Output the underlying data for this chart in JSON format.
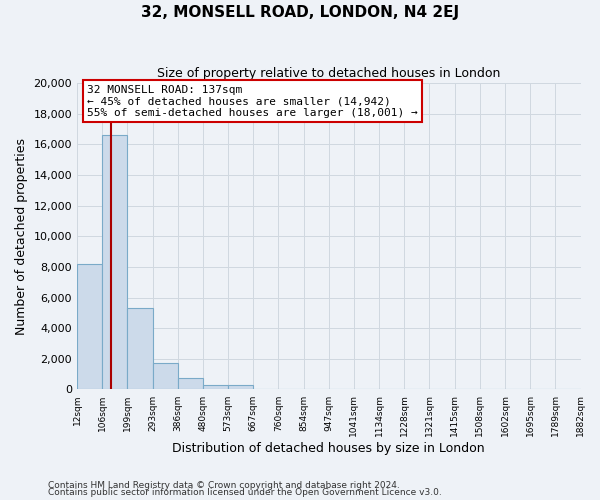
{
  "title": "32, MONSELL ROAD, LONDON, N4 2EJ",
  "subtitle": "Size of property relative to detached houses in London",
  "xlabel": "Distribution of detached houses by size in London",
  "ylabel": "Number of detached properties",
  "bar_values": [
    8200,
    16600,
    5300,
    1750,
    750,
    280,
    280,
    0,
    0,
    0,
    0,
    0,
    0,
    0,
    0,
    0,
    0,
    0,
    0,
    0
  ],
  "bar_labels": [
    "12sqm",
    "106sqm",
    "199sqm",
    "293sqm",
    "386sqm",
    "480sqm",
    "573sqm",
    "667sqm",
    "760sqm",
    "854sqm",
    "947sqm",
    "1041sqm",
    "1134sqm",
    "1228sqm",
    "1321sqm",
    "1415sqm",
    "1508sqm",
    "1602sqm",
    "1695sqm",
    "1789sqm",
    "1882sqm"
  ],
  "bar_color": "#ccdaea",
  "bar_edge_color": "#7aaac8",
  "grid_color": "#d0d8e0",
  "bg_color": "#eef2f7",
  "vline_color": "#aa0000",
  "annotation_title": "32 MONSELL ROAD: 137sqm",
  "annotation_line1": "← 45% of detached houses are smaller (14,942)",
  "annotation_line2": "55% of semi-detached houses are larger (18,001) →",
  "annotation_box_color": "#ffffff",
  "annotation_box_edge": "#cc0000",
  "ylim": [
    0,
    20000
  ],
  "yticks": [
    0,
    2000,
    4000,
    6000,
    8000,
    10000,
    12000,
    14000,
    16000,
    18000,
    20000
  ],
  "footer1": "Contains HM Land Registry data © Crown copyright and database right 2024.",
  "footer2": "Contains public sector information licensed under the Open Government Licence v3.0."
}
